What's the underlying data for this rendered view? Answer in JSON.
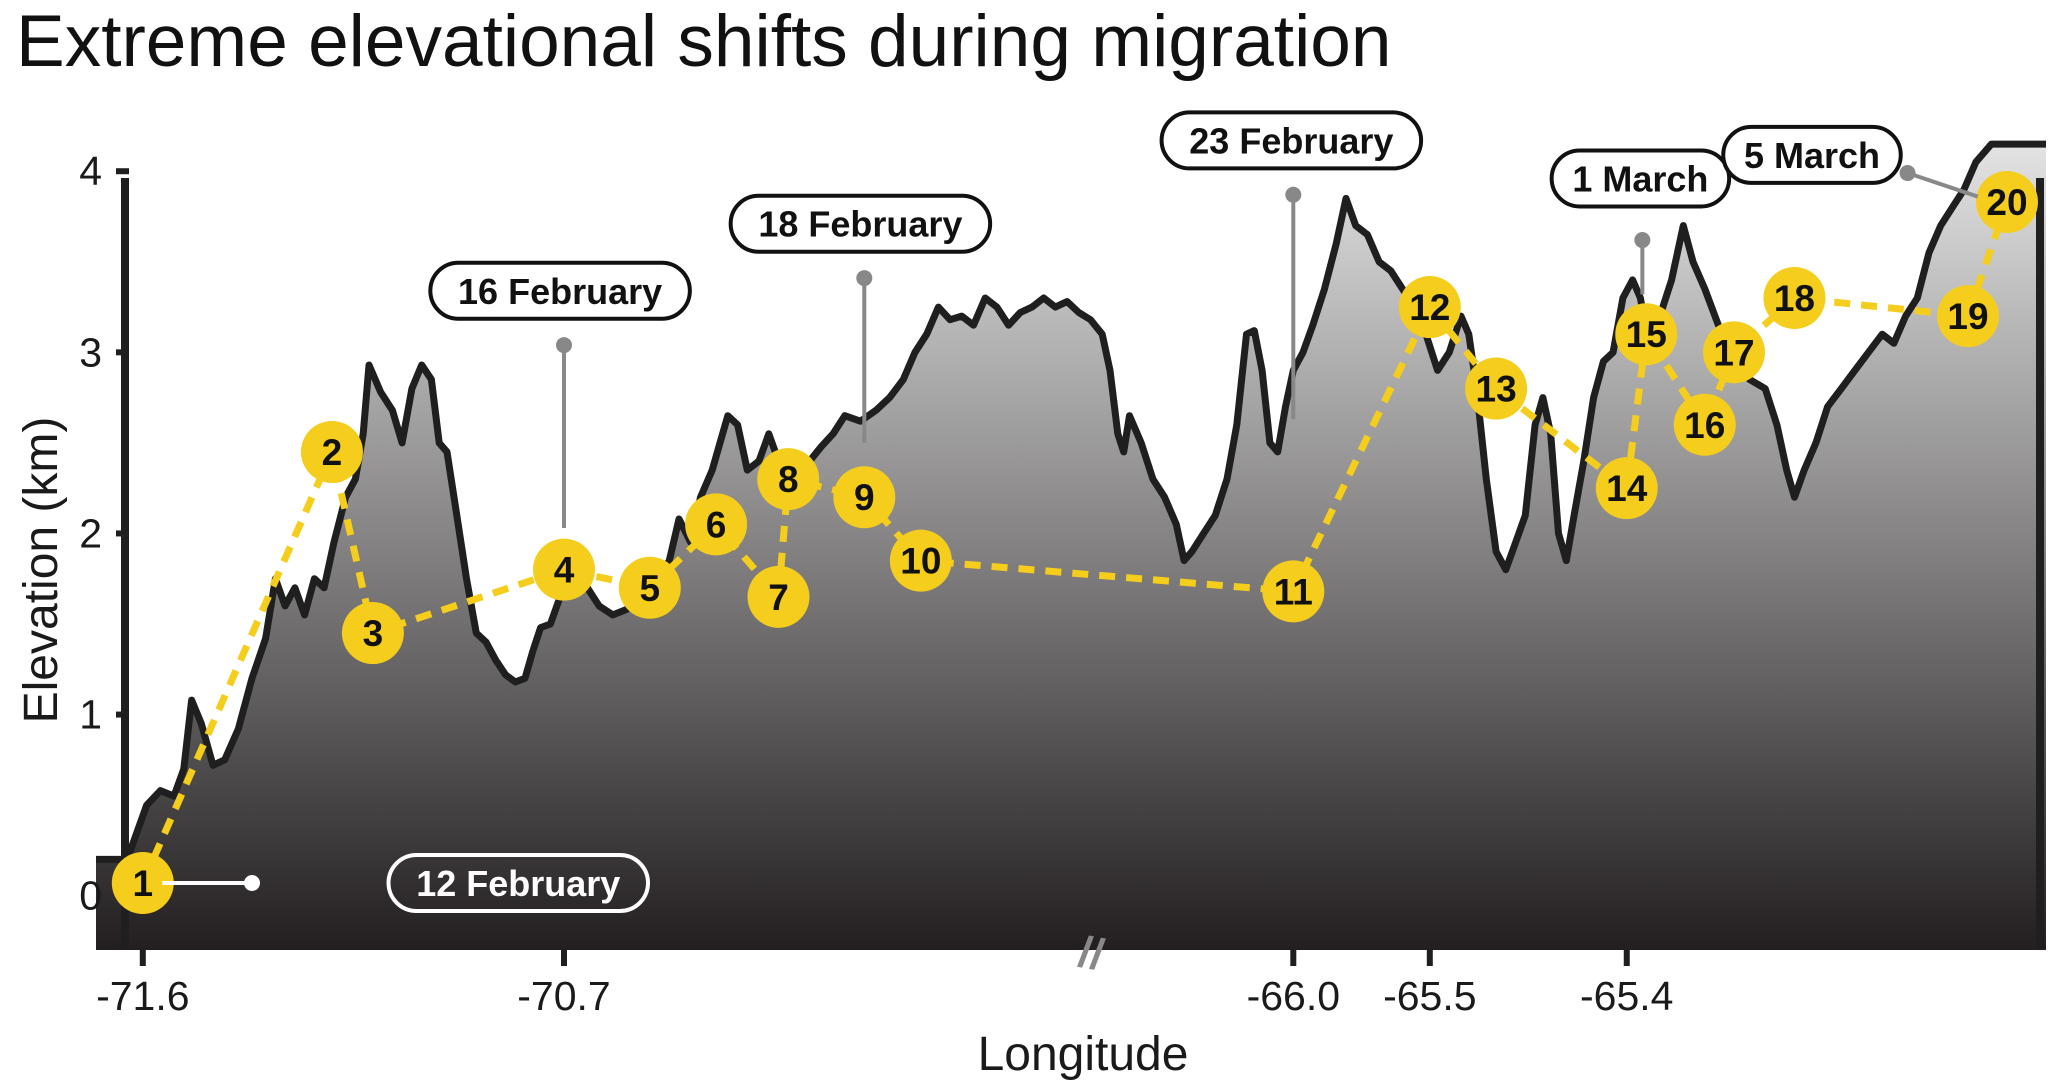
{
  "chart_data": {
    "type": "area",
    "title": "Extreme elevational shifts during migration",
    "xlabel": "Longitude",
    "ylabel": "Elevation (km)",
    "ylim": [
      -0.3,
      4.2
    ],
    "yticks": [
      0,
      1,
      2,
      3,
      4
    ],
    "xticks": [
      "-71.6",
      "-70.7",
      "-66.0",
      "-65.5",
      "-65.4"
    ],
    "axis_break": "//",
    "colors": {
      "route": "#f5cd1c",
      "terrain_top": "#e3e3e3",
      "terrain_bottom": "#231f20",
      "outline": "#1f1f1f",
      "leader": "#888888"
    },
    "terrain_profile": [
      [
        0.0,
        0.2
      ],
      [
        0.016,
        0.2
      ],
      [
        0.026,
        0.5
      ],
      [
        0.033,
        0.58
      ],
      [
        0.04,
        0.55
      ],
      [
        0.045,
        0.7
      ],
      [
        0.049,
        1.08
      ],
      [
        0.054,
        0.95
      ],
      [
        0.06,
        0.72
      ],
      [
        0.066,
        0.75
      ],
      [
        0.073,
        0.92
      ],
      [
        0.08,
        1.2
      ],
      [
        0.087,
        1.42
      ],
      [
        0.092,
        1.75
      ],
      [
        0.097,
        1.6
      ],
      [
        0.102,
        1.7
      ],
      [
        0.107,
        1.55
      ],
      [
        0.112,
        1.75
      ],
      [
        0.117,
        1.7
      ],
      [
        0.122,
        1.95
      ],
      [
        0.128,
        2.2
      ],
      [
        0.133,
        2.3
      ],
      [
        0.137,
        2.55
      ],
      [
        0.14,
        2.93
      ],
      [
        0.146,
        2.78
      ],
      [
        0.152,
        2.68
      ],
      [
        0.157,
        2.5
      ],
      [
        0.162,
        2.8
      ],
      [
        0.167,
        2.93
      ],
      [
        0.172,
        2.85
      ],
      [
        0.176,
        2.5
      ],
      [
        0.18,
        2.45
      ],
      [
        0.185,
        2.1
      ],
      [
        0.19,
        1.75
      ],
      [
        0.195,
        1.45
      ],
      [
        0.2,
        1.4
      ],
      [
        0.205,
        1.3
      ],
      [
        0.21,
        1.22
      ],
      [
        0.215,
        1.18
      ],
      [
        0.22,
        1.2
      ],
      [
        0.224,
        1.35
      ],
      [
        0.228,
        1.48
      ],
      [
        0.233,
        1.5
      ],
      [
        0.238,
        1.65
      ],
      [
        0.245,
        1.8
      ],
      [
        0.252,
        1.7
      ],
      [
        0.258,
        1.6
      ],
      [
        0.265,
        1.55
      ],
      [
        0.272,
        1.58
      ],
      [
        0.28,
        1.65
      ],
      [
        0.288,
        1.75
      ],
      [
        0.294,
        1.85
      ],
      [
        0.299,
        2.08
      ],
      [
        0.305,
        1.95
      ],
      [
        0.31,
        2.2
      ],
      [
        0.316,
        2.35
      ],
      [
        0.32,
        2.5
      ],
      [
        0.324,
        2.65
      ],
      [
        0.329,
        2.6
      ],
      [
        0.334,
        2.35
      ],
      [
        0.34,
        2.4
      ],
      [
        0.345,
        2.55
      ],
      [
        0.35,
        2.4
      ],
      [
        0.355,
        2.25
      ],
      [
        0.36,
        2.3
      ],
      [
        0.366,
        2.4
      ],
      [
        0.372,
        2.48
      ],
      [
        0.378,
        2.55
      ],
      [
        0.384,
        2.65
      ],
      [
        0.392,
        2.62
      ],
      [
        0.4,
        2.68
      ],
      [
        0.407,
        2.75
      ],
      [
        0.414,
        2.85
      ],
      [
        0.42,
        3.0
      ],
      [
        0.426,
        3.1
      ],
      [
        0.432,
        3.25
      ],
      [
        0.438,
        3.18
      ],
      [
        0.444,
        3.2
      ],
      [
        0.45,
        3.15
      ],
      [
        0.456,
        3.3
      ],
      [
        0.462,
        3.25
      ],
      [
        0.468,
        3.15
      ],
      [
        0.474,
        3.22
      ],
      [
        0.48,
        3.25
      ],
      [
        0.486,
        3.3
      ],
      [
        0.492,
        3.25
      ],
      [
        0.498,
        3.28
      ],
      [
        0.504,
        3.22
      ],
      [
        0.51,
        3.18
      ],
      [
        0.516,
        3.1
      ],
      [
        0.52,
        2.9
      ],
      [
        0.524,
        2.55
      ],
      [
        0.527,
        2.45
      ],
      [
        0.53,
        2.65
      ],
      [
        0.536,
        2.5
      ],
      [
        0.542,
        2.3
      ],
      [
        0.548,
        2.2
      ],
      [
        0.554,
        2.05
      ],
      [
        0.558,
        1.85
      ],
      [
        0.562,
        1.9
      ],
      [
        0.568,
        2.0
      ],
      [
        0.574,
        2.1
      ],
      [
        0.58,
        2.3
      ],
      [
        0.585,
        2.6
      ],
      [
        0.59,
        3.1
      ],
      [
        0.594,
        3.12
      ],
      [
        0.598,
        2.9
      ],
      [
        0.602,
        2.5
      ],
      [
        0.606,
        2.45
      ],
      [
        0.61,
        2.7
      ],
      [
        0.614,
        2.9
      ],
      [
        0.619,
        3.0
      ],
      [
        0.624,
        3.15
      ],
      [
        0.63,
        3.35
      ],
      [
        0.636,
        3.6
      ],
      [
        0.641,
        3.85
      ],
      [
        0.646,
        3.7
      ],
      [
        0.652,
        3.65
      ],
      [
        0.658,
        3.5
      ],
      [
        0.664,
        3.45
      ],
      [
        0.67,
        3.35
      ],
      [
        0.676,
        3.25
      ],
      [
        0.682,
        3.1
      ],
      [
        0.688,
        2.9
      ],
      [
        0.694,
        3.0
      ],
      [
        0.7,
        3.2
      ],
      [
        0.704,
        3.1
      ],
      [
        0.708,
        2.8
      ],
      [
        0.713,
        2.3
      ],
      [
        0.718,
        1.9
      ],
      [
        0.723,
        1.8
      ],
      [
        0.728,
        1.95
      ],
      [
        0.733,
        2.1
      ],
      [
        0.738,
        2.6
      ],
      [
        0.742,
        2.75
      ],
      [
        0.746,
        2.55
      ],
      [
        0.75,
        2.0
      ],
      [
        0.754,
        1.85
      ],
      [
        0.758,
        2.1
      ],
      [
        0.763,
        2.4
      ],
      [
        0.768,
        2.75
      ],
      [
        0.773,
        2.95
      ],
      [
        0.778,
        3.0
      ],
      [
        0.783,
        3.3
      ],
      [
        0.788,
        3.4
      ],
      [
        0.792,
        3.3
      ],
      [
        0.797,
        3.0
      ],
      [
        0.802,
        3.2
      ],
      [
        0.808,
        3.4
      ],
      [
        0.814,
        3.7
      ],
      [
        0.819,
        3.5
      ],
      [
        0.825,
        3.35
      ],
      [
        0.832,
        3.15
      ],
      [
        0.84,
        3.0
      ],
      [
        0.848,
        2.85
      ],
      [
        0.856,
        2.8
      ],
      [
        0.862,
        2.6
      ],
      [
        0.867,
        2.35
      ],
      [
        0.871,
        2.2
      ],
      [
        0.876,
        2.35
      ],
      [
        0.882,
        2.5
      ],
      [
        0.888,
        2.7
      ],
      [
        0.895,
        2.8
      ],
      [
        0.902,
        2.9
      ],
      [
        0.909,
        3.0
      ],
      [
        0.916,
        3.1
      ],
      [
        0.922,
        3.05
      ],
      [
        0.928,
        3.2
      ],
      [
        0.934,
        3.3
      ],
      [
        0.94,
        3.55
      ],
      [
        0.946,
        3.7
      ],
      [
        0.952,
        3.8
      ],
      [
        0.958,
        3.9
      ],
      [
        0.964,
        4.05
      ],
      [
        0.968,
        4.1
      ],
      [
        0.972,
        4.15
      ],
      [
        1.0,
        4.15
      ]
    ],
    "route_points": [
      {
        "label": "1",
        "x": 0.024,
        "y": 0.07
      },
      {
        "label": "2",
        "x": 0.121,
        "y": 2.45
      },
      {
        "label": "3",
        "x": 0.142,
        "y": 1.45
      },
      {
        "label": "4",
        "x": 0.24,
        "y": 1.8
      },
      {
        "label": "5",
        "x": 0.284,
        "y": 1.7
      },
      {
        "label": "6",
        "x": 0.318,
        "y": 2.05
      },
      {
        "label": "7",
        "x": 0.35,
        "y": 1.65
      },
      {
        "label": "8",
        "x": 0.355,
        "y": 2.3
      },
      {
        "label": "9",
        "x": 0.394,
        "y": 2.2
      },
      {
        "label": "10",
        "x": 0.423,
        "y": 1.85
      },
      {
        "label": "11",
        "x": 0.614,
        "y": 1.68
      },
      {
        "label": "12",
        "x": 0.684,
        "y": 3.25
      },
      {
        "label": "13",
        "x": 0.718,
        "y": 2.8
      },
      {
        "label": "14",
        "x": 0.785,
        "y": 2.25
      },
      {
        "label": "15",
        "x": 0.795,
        "y": 3.1
      },
      {
        "label": "16",
        "x": 0.825,
        "y": 2.6
      },
      {
        "label": "17",
        "x": 0.84,
        "y": 3.0
      },
      {
        "label": "18",
        "x": 0.871,
        "y": 3.3
      },
      {
        "label": "19",
        "x": 0.96,
        "y": 3.2
      },
      {
        "label": "20",
        "x": 0.98,
        "y": 3.83
      }
    ],
    "date_annotations": [
      {
        "label": "12 February",
        "x": 0.15,
        "y": 0.07,
        "anchor_x": 0.08,
        "anchor_y": 0.07,
        "box": "dark"
      },
      {
        "label": "16 February",
        "x": 0.238,
        "y": 3.34,
        "anchor_x": 0.24,
        "anchor_y": 3.04,
        "end_y": 2.03,
        "box": "light"
      },
      {
        "label": "18 February",
        "x": 0.392,
        "y": 3.71,
        "anchor_x": 0.394,
        "anchor_y": 3.41,
        "end_y": 2.5,
        "box": "light"
      },
      {
        "label": "23 February",
        "x": 0.613,
        "y": 4.17,
        "anchor_x": 0.614,
        "anchor_y": 3.87,
        "end_y": 2.63,
        "box": "light"
      },
      {
        "label": "1 March",
        "x": 0.792,
        "y": 3.96,
        "anchor_x": 0.793,
        "anchor_y": 3.62,
        "end_y": 3.32,
        "box": "light"
      },
      {
        "label": "5 March",
        "x": 0.88,
        "y": 4.09,
        "anchor_x": 0.929,
        "anchor_y": 3.99,
        "end_x": 0.965,
        "end_y": 3.86,
        "box": "light"
      }
    ]
  }
}
